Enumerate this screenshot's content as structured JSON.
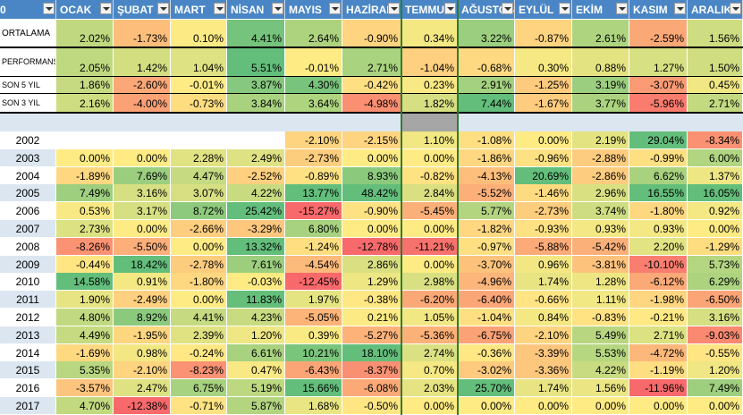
{
  "header": {
    "corner": "0",
    "months": [
      "OCAK",
      "ŞUBAT",
      "MART",
      "NİSAN",
      "MAYIS",
      "HAZİRAN",
      "TEMMUZ",
      "AĞUSTOS",
      "EYLÜL",
      "EKİM",
      "KASIM",
      "ARALIK"
    ]
  },
  "summary_rows": [
    {
      "label": "ORTALAMA",
      "values": [
        "2.02%",
        "-1.73%",
        "0.10%",
        "4.41%",
        "2.64%",
        "-0.90%",
        "0.34%",
        "3.22%",
        "-0.87%",
        "2.61%",
        "-2.59%",
        "1.56%"
      ]
    },
    {
      "label": "PERFORMANS",
      "values": [
        "2.05%",
        "1.42%",
        "1.04%",
        "5.51%",
        "-0.01%",
        "2.71%",
        "-1.04%",
        "-0.68%",
        "0.30%",
        "0.88%",
        "1.27%",
        "1.50%"
      ]
    },
    {
      "label": "SON 5 YIL",
      "values": [
        "1.86%",
        "-2.60%",
        "-0.01%",
        "3.87%",
        "4.30%",
        "-0.42%",
        "0.23%",
        "2.91%",
        "-1.25%",
        "3.19%",
        "-3.07%",
        "0.45%"
      ]
    },
    {
      "label": "SON 3 YIL",
      "values": [
        "2.16%",
        "-4.00%",
        "-0.73%",
        "3.84%",
        "3.64%",
        "-4.98%",
        "1.82%",
        "7.44%",
        "-1.67%",
        "3.77%",
        "-5.96%",
        "2.71%"
      ]
    }
  ],
  "year_rows": [
    {
      "year": "2002",
      "values": [
        null,
        null,
        null,
        null,
        "-2.10%",
        "-2.15%",
        "1.10%",
        "-1.08%",
        "0.00%",
        "2.19%",
        "29.04%",
        "-8.34%"
      ]
    },
    {
      "year": "2003",
      "values": [
        "0.00%",
        "0.00%",
        "2.28%",
        "2.49%",
        "-2.73%",
        "0.00%",
        "0.00%",
        "-1.86%",
        "-0.96%",
        "-2.88%",
        "-0.99%",
        "6.00%"
      ]
    },
    {
      "year": "2004",
      "values": [
        "-1.89%",
        "7.69%",
        "4.47%",
        "-2.52%",
        "-0.89%",
        "8.93%",
        "-0.82%",
        "-4.13%",
        "20.69%",
        "-2.86%",
        "6.62%",
        "1.37%"
      ]
    },
    {
      "year": "2005",
      "values": [
        "7.49%",
        "3.16%",
        "3.07%",
        "4.22%",
        "13.77%",
        "48.42%",
        "2.84%",
        "-5.52%",
        "-1.46%",
        "2.96%",
        "16.55%",
        "16.05%"
      ]
    },
    {
      "year": "2006",
      "values": [
        "0.53%",
        "3.17%",
        "8.72%",
        "25.42%",
        "-15.27%",
        "-0.90%",
        "-5.45%",
        "5.77%",
        "-2.73%",
        "3.74%",
        "-1.80%",
        "0.92%"
      ]
    },
    {
      "year": "2007",
      "values": [
        "2.73%",
        "0.00%",
        "-2.66%",
        "-3.29%",
        "6.80%",
        "0.00%",
        "0.00%",
        "-1.82%",
        "-0.93%",
        "0.93%",
        "0.93%",
        "0.00%"
      ]
    },
    {
      "year": "2008",
      "values": [
        "-8.26%",
        "-5.50%",
        "0.00%",
        "13.32%",
        "-1.24%",
        "-12.78%",
        "-11.21%",
        "-0.97%",
        "-5.88%",
        "-5.42%",
        "2.20%",
        "-1.29%"
      ]
    },
    {
      "year": "2009",
      "values": [
        "-0.44%",
        "18.42%",
        "-2.78%",
        "7.61%",
        "-4.54%",
        "2.86%",
        "0.00%",
        "-3.70%",
        "0.96%",
        "-3.81%",
        "-10.10%",
        "5.73%"
      ]
    },
    {
      "year": "2010",
      "values": [
        "14.58%",
        "0.91%",
        "-1.80%",
        "-0.03%",
        "-12.45%",
        "1.29%",
        "2.98%",
        "-4.96%",
        "1.74%",
        "1.28%",
        "-6.12%",
        "6.29%"
      ]
    },
    {
      "year": "2011",
      "values": [
        "1.90%",
        "-2.49%",
        "0.00%",
        "11.83%",
        "1.97%",
        "-0.38%",
        "-6.20%",
        "-6.40%",
        "-0.66%",
        "1.11%",
        "-1.98%",
        "-6.50%"
      ]
    },
    {
      "year": "2012",
      "values": [
        "4.80%",
        "8.92%",
        "4.41%",
        "4.23%",
        "-5.05%",
        "0.21%",
        "1.05%",
        "-1.04%",
        "0.84%",
        "-0.83%",
        "-0.21%",
        "3.16%"
      ]
    },
    {
      "year": "2013",
      "values": [
        "4.49%",
        "-1.95%",
        "2.39%",
        "1.20%",
        "0.39%",
        "-5.27%",
        "-5.36%",
        "-6.75%",
        "-2.10%",
        "5.49%",
        "2.71%",
        "-9.03%"
      ]
    },
    {
      "year": "2014",
      "values": [
        "-1.69%",
        "0.98%",
        "-0.24%",
        "6.61%",
        "10.21%",
        "18.10%",
        "2.74%",
        "-0.36%",
        "-3.39%",
        "5.53%",
        "-4.72%",
        "-0.55%"
      ]
    },
    {
      "year": "2015",
      "values": [
        "5.35%",
        "-2.10%",
        "-8.23%",
        "0.47%",
        "-6.43%",
        "-8.37%",
        "0.70%",
        "-3.02%",
        "-3.36%",
        "4.22%",
        "-1.19%",
        "1.20%"
      ]
    },
    {
      "year": "2016",
      "values": [
        "-3.57%",
        "2.47%",
        "6.75%",
        "5.19%",
        "15.66%",
        "-6.08%",
        "2.03%",
        "25.70%",
        "1.74%",
        "1.56%",
        "-11.96%",
        "7.49%"
      ]
    },
    {
      "year": "2017",
      "values": [
        "4.70%",
        "-12.38%",
        "-0.71%",
        "5.87%",
        "1.68%",
        "-0.50%",
        "0.00%",
        "0.00%",
        "0.00%",
        "0.00%",
        "0.00%",
        "0.00%"
      ]
    }
  ],
  "colors": {
    "header_bg": "#4a86c5",
    "negative": "#f8696b",
    "neutral": "#ffeb84",
    "positive": "#63be7b",
    "separator_row": "#dbe6f1",
    "year_band": "#dbe6f1"
  },
  "icons": {
    "filter_dropdown": "chevron-down-icon"
  }
}
